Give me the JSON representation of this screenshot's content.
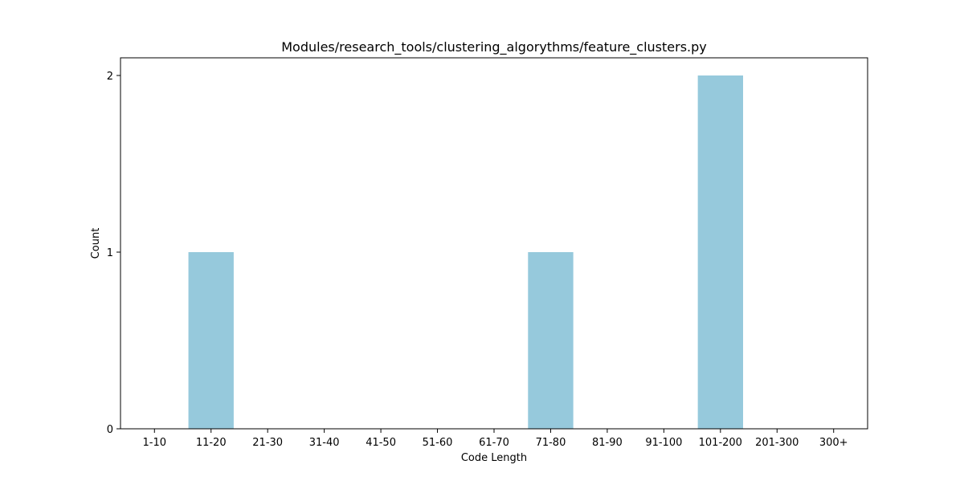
{
  "chart_data": {
    "type": "bar",
    "title": "Modules/research_tools/clustering_algorythms/feature_clusters.py",
    "xlabel": "Code Length",
    "ylabel": "Count",
    "categories": [
      "1-10",
      "11-20",
      "21-30",
      "31-40",
      "41-50",
      "51-60",
      "61-70",
      "71-80",
      "81-90",
      "91-100",
      "101-200",
      "201-300",
      "300+"
    ],
    "values": [
      0,
      1,
      0,
      0,
      0,
      0,
      0,
      1,
      0,
      0,
      2,
      0,
      0
    ],
    "yticks": [
      "0",
      "1",
      "2"
    ],
    "ylim": [
      0,
      2.1
    ],
    "grid": false,
    "bar_color": "#96c9dc"
  }
}
